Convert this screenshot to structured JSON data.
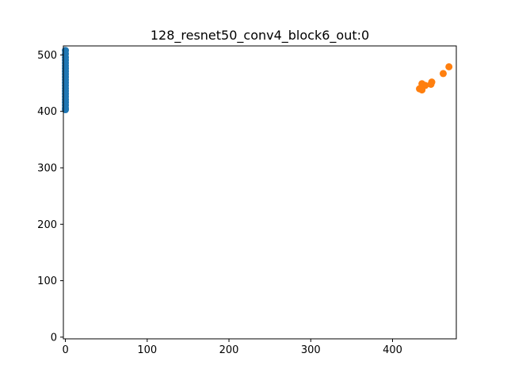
{
  "chart_data": {
    "type": "scatter",
    "title": "128_resnet50_conv4_block6_out:0",
    "xlabel": "",
    "ylabel": "",
    "xlim": [
      -2.5,
      478
    ],
    "ylim": [
      -3,
      516
    ],
    "xticks": [
      0,
      100,
      200,
      300,
      400
    ],
    "yticks": [
      0,
      100,
      200,
      300,
      400,
      500
    ],
    "grid": false,
    "colors": [
      "#1f77b4",
      "#ff7f0e"
    ],
    "series": [
      {
        "color": "#1f77b4",
        "points": [
          [
            0,
            508
          ],
          [
            0,
            502
          ],
          [
            0,
            496
          ],
          [
            0,
            491
          ],
          [
            0,
            486
          ],
          [
            0,
            481
          ],
          [
            0,
            476
          ],
          [
            0,
            471
          ],
          [
            0,
            466
          ],
          [
            0,
            461
          ],
          [
            0,
            456
          ],
          [
            0,
            451
          ],
          [
            0,
            446
          ],
          [
            0,
            441
          ],
          [
            0,
            436
          ],
          [
            0,
            431
          ],
          [
            0,
            426
          ],
          [
            0,
            421
          ],
          [
            0,
            416
          ],
          [
            0,
            411
          ],
          [
            0,
            406
          ],
          [
            0,
            403
          ]
        ]
      },
      {
        "color": "#ff7f0e",
        "points": [
          [
            469,
            479
          ],
          [
            462,
            467
          ],
          [
            448,
            452
          ],
          [
            447,
            448
          ],
          [
            440,
            446
          ],
          [
            436,
            449
          ],
          [
            436,
            441
          ],
          [
            433,
            440
          ],
          [
            436,
            438
          ]
        ]
      }
    ]
  }
}
